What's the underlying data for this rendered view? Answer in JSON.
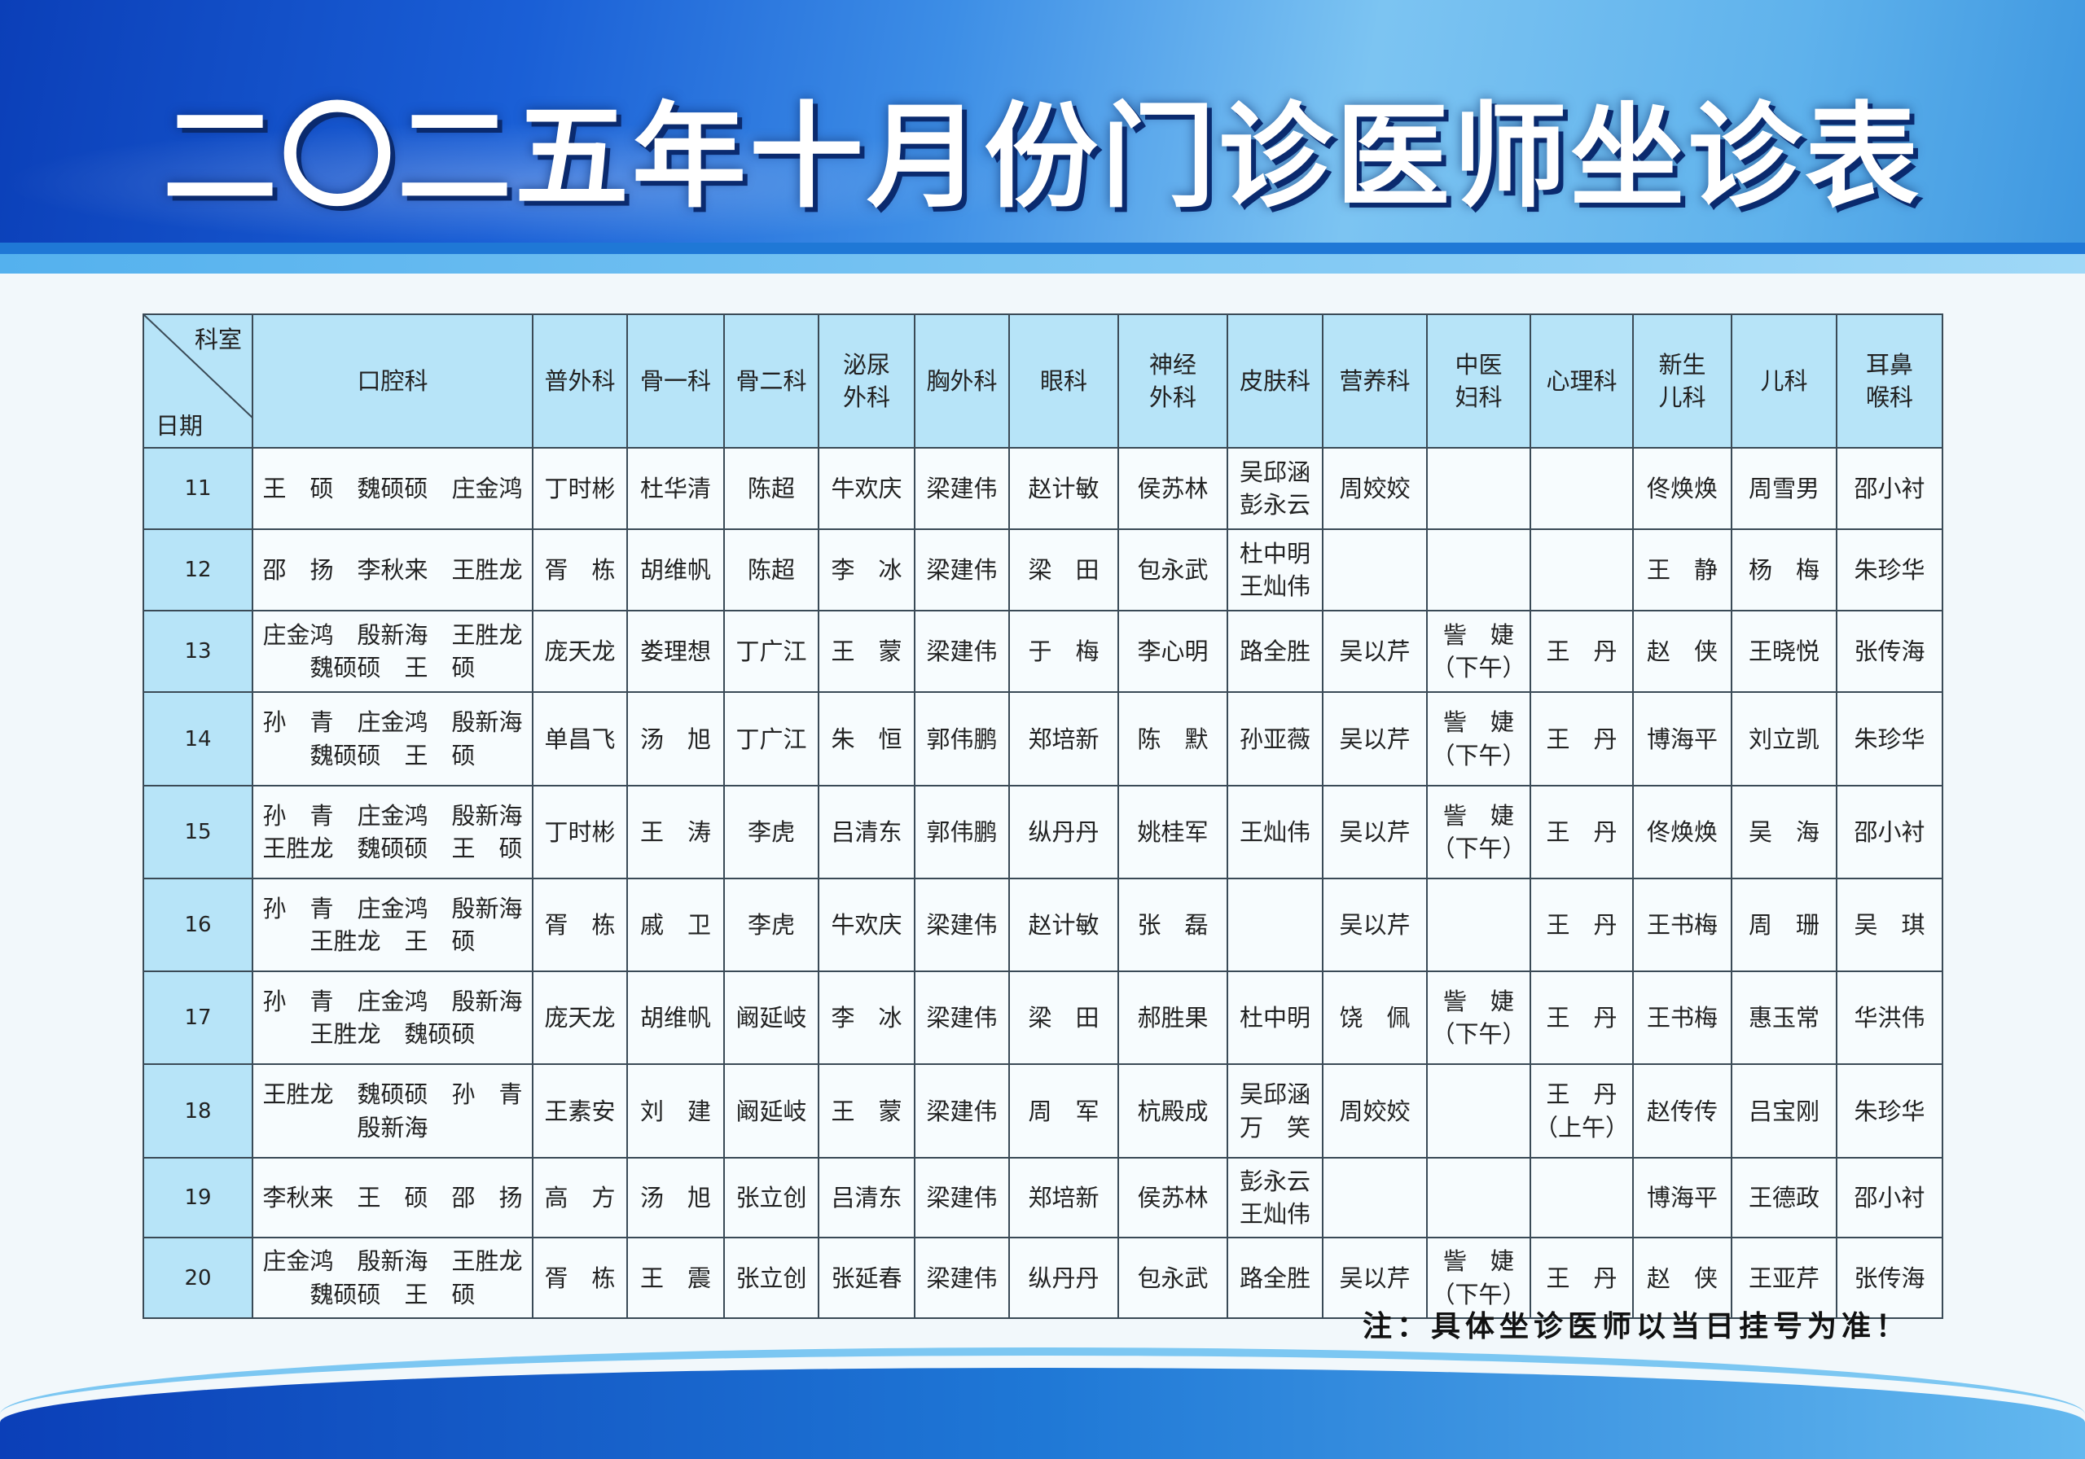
{
  "title": "二〇二五年十月份门诊医师坐诊表",
  "colors": {
    "header_band": "#1a5fd6",
    "table_header_bg": "#b7e4f8",
    "cell_bg": "#f7fcfe"
  },
  "table": {
    "corner": {
      "top_right": "科室",
      "bottom_left": "日期"
    },
    "departments": [
      "口腔科",
      "普外科",
      "骨一科",
      "骨二科",
      "泌尿\n外科",
      "胸外科",
      "眼科",
      "神经\n外科",
      "皮肤科",
      "营养科",
      "中医\n妇科",
      "心理科",
      "新生\n儿科",
      "儿科",
      "耳鼻\n喉科"
    ],
    "rows": [
      {
        "date": "11",
        "cells": [
          "王　硕　魏硕硕　庄金鸿",
          "丁时彬",
          "杜华清",
          "陈超",
          "牛欢庆",
          "梁建伟",
          "赵计敏",
          "侯苏林",
          "吴邱涵\n彭永云",
          "周姣姣",
          "",
          "",
          "佟焕焕",
          "周雪男",
          "邵小衬"
        ]
      },
      {
        "date": "12",
        "cells": [
          "邵　扬　李秋来　王胜龙",
          "胥　栋",
          "胡维帆",
          "陈超",
          "李　冰",
          "梁建伟",
          "梁　田",
          "包永武",
          "杜中明\n王灿伟",
          "",
          "",
          "",
          "王　静",
          "杨　梅",
          "朱珍华"
        ]
      },
      {
        "date": "13",
        "cells": [
          "庄金鸿　殷新海　王胜龙\n魏硕硕　王　硕",
          "庞天龙",
          "娄理想",
          "丁广江",
          "王　蒙",
          "梁建伟",
          "于　梅",
          "李心明",
          "路全胜",
          "吴以芹",
          "訾　婕\n（下午）",
          "王　丹",
          "赵　侠",
          "王晓悦",
          "张传海"
        ]
      },
      {
        "date": "14",
        "cells": [
          "孙　青　庄金鸿　殷新海\n魏硕硕　王　硕",
          "单昌飞",
          "汤　旭",
          "丁广江",
          "朱　恒",
          "郭伟鹏",
          "郑培新",
          "陈　默",
          "孙亚薇",
          "吴以芹",
          "訾　婕\n（下午）",
          "王　丹",
          "博海平",
          "刘立凯",
          "朱珍华"
        ]
      },
      {
        "date": "15",
        "cells": [
          "孙　青　庄金鸿　殷新海\n王胜龙　魏硕硕　王　硕",
          "丁时彬",
          "王　涛",
          "李虎",
          "吕清东",
          "郭伟鹏",
          "纵丹丹",
          "姚桂军",
          "王灿伟",
          "吴以芹",
          "訾　婕\n（下午）",
          "王　丹",
          "佟焕焕",
          "吴　海",
          "邵小衬"
        ]
      },
      {
        "date": "16",
        "cells": [
          "孙　青　庄金鸿　殷新海\n王胜龙　王　硕",
          "胥　栋",
          "戚　卫",
          "李虎",
          "牛欢庆",
          "梁建伟",
          "赵计敏",
          "张　磊",
          "",
          "吴以芹",
          "",
          "王　丹",
          "王书梅",
          "周　珊",
          "吴　琪"
        ]
      },
      {
        "date": "17",
        "cells": [
          "孙　青　庄金鸿　殷新海\n王胜龙　魏硕硕",
          "庞天龙",
          "胡维帆",
          "阚延岐",
          "李　冰",
          "梁建伟",
          "梁　田",
          "郝胜果",
          "杜中明",
          "饶　佩",
          "訾　婕\n（下午）",
          "王　丹",
          "王书梅",
          "惠玉常",
          "华洪伟"
        ]
      },
      {
        "date": "18",
        "cells": [
          "王胜龙　魏硕硕　孙　青\n殷新海",
          "王素安",
          "刘　建",
          "阚延岐",
          "王　蒙",
          "梁建伟",
          "周　军",
          "杭殿成",
          "吴邱涵\n万　笑",
          "周姣姣",
          "",
          "王　丹\n（上午）",
          "赵传传",
          "吕宝刚",
          "朱珍华"
        ]
      },
      {
        "date": "19",
        "cells": [
          "李秋来　王　硕　邵　扬",
          "高　方",
          "汤　旭",
          "张立创",
          "吕清东",
          "梁建伟",
          "郑培新",
          "侯苏林",
          "彭永云\n王灿伟",
          "",
          "",
          "",
          "博海平",
          "王德政",
          "邵小衬"
        ]
      },
      {
        "date": "20",
        "cells": [
          "庄金鸿　殷新海　王胜龙\n魏硕硕　王　硕",
          "胥　栋",
          "王　震",
          "张立创",
          "张延春",
          "梁建伟",
          "纵丹丹",
          "包永武",
          "路全胜",
          "吴以芹",
          "訾　婕\n（下午）",
          "王　丹",
          "赵　侠",
          "王亚芹",
          "张传海"
        ]
      }
    ]
  },
  "note": "注：具体坐诊医师以当日挂号为准！"
}
